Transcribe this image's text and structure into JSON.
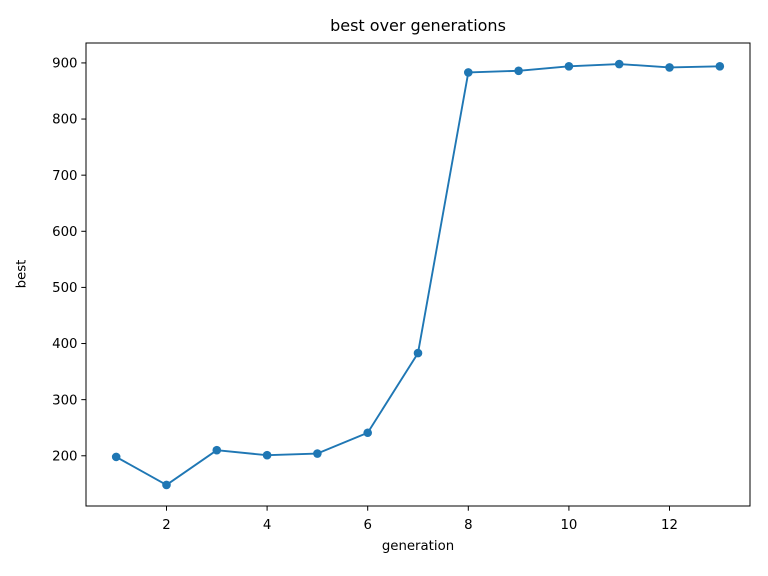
{
  "figure": {
    "background": "#ffffff",
    "title": "best over generations",
    "xlabel": "generation",
    "ylabel": "best"
  },
  "chart_data": {
    "type": "line",
    "title": "best over generations",
    "xlabel": "generation",
    "ylabel": "best",
    "x": [
      1,
      2,
      3,
      4,
      5,
      6,
      7,
      8,
      9,
      10,
      11,
      12,
      13
    ],
    "y": [
      198,
      148,
      210,
      201,
      204,
      241,
      383,
      883,
      886,
      894,
      898,
      892,
      894
    ],
    "series": [
      {
        "name": "best",
        "values": [
          198,
          148,
          210,
          201,
          204,
          241,
          383,
          883,
          886,
          894,
          898,
          892,
          894
        ]
      }
    ],
    "xticks": [
      2,
      4,
      6,
      8,
      10,
      12
    ],
    "yticks": [
      200,
      300,
      400,
      500,
      600,
      700,
      800,
      900
    ],
    "xlim": [
      0.4,
      13.6
    ],
    "ylim": [
      110.5,
      935.5
    ],
    "grid": false,
    "legend_position": "none",
    "line_color": "#1f77b4",
    "marker": "circle",
    "axis_color": "#000000"
  }
}
